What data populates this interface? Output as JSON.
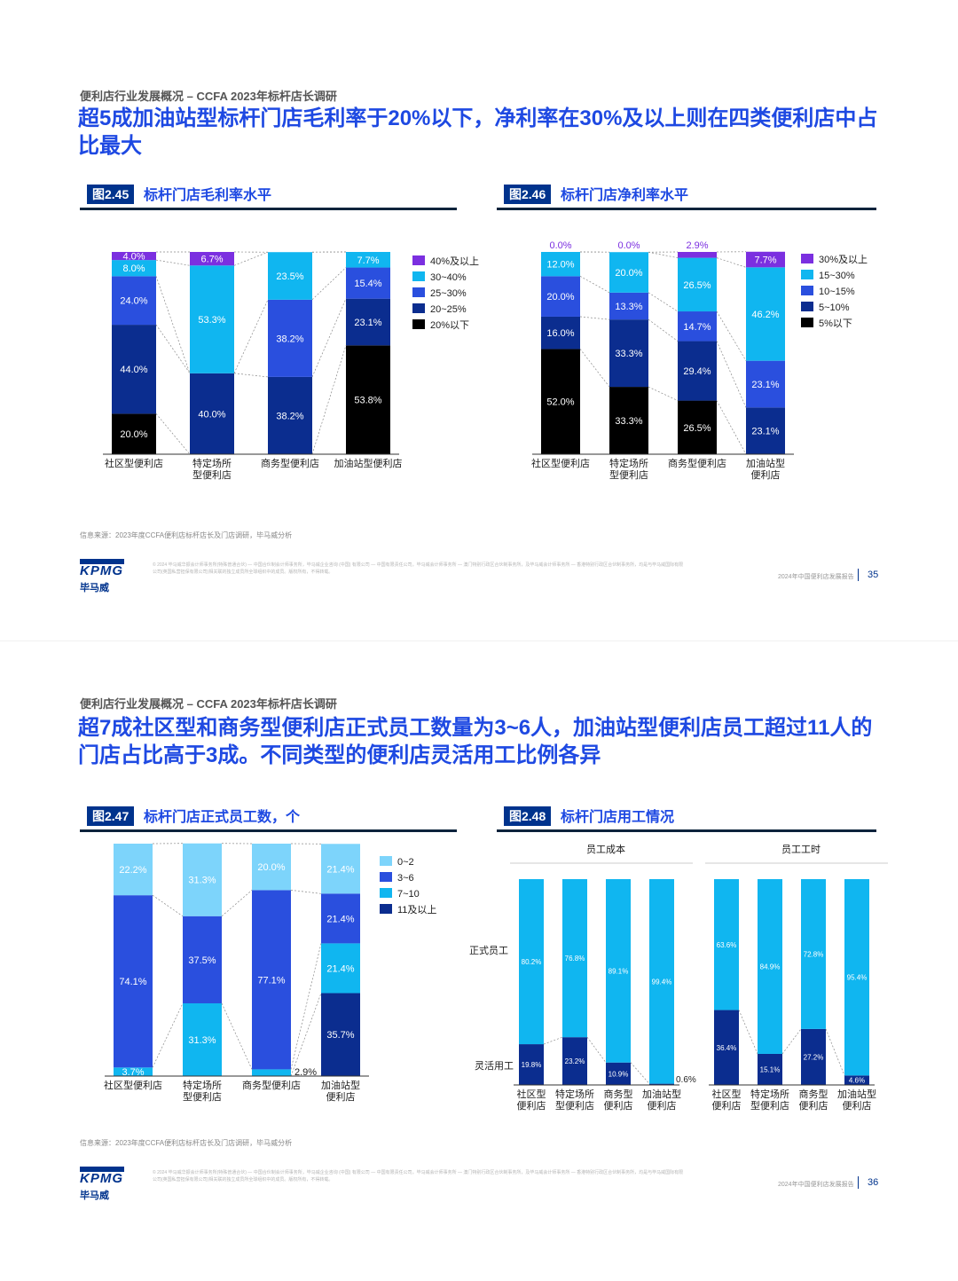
{
  "pages": [
    {
      "section": "便利店行业发展概况 – CCFA 2023年标杆店长调研",
      "headline": "超5成加油站型标杆门店毛利率于20%以下，净利率在30%及以上则在四类便利店中占比最大",
      "source": "信息来源：2023年度CCFA便利店标杆店长及门店调研，毕马威分析",
      "disclaimer": "© 2024 毕马威华振会计师事务所(特殊普通合伙) — 中国合伙制会计师事务所，毕马威企业咨询 (中国) 有限公司 — 中国有限责任公司，毕马威会计师事务所 — 澳门特别行政区合伙制事务所，及毕马威会计师事务所 — 香港特别行政区合伙制事务所，均是与毕马威国际有限公司(英国私营担保有限公司)相关联的独立成员所全球组织中的成员。版权所有，不得转载。",
      "report_name": "2024年中国便利店发展报告",
      "page_number": "35"
    },
    {
      "section": "便利店行业发展概况 – CCFA 2023年标杆店长调研",
      "headline": "超7成社区型和商务型便利店正式员工数量为3~6人，加油站型便利店员工超过11人的门店占比高于3成。不同类型的便利店灵活用工比例各异",
      "source": "信息来源：2023年度CCFA便利店标杆店长及门店调研，毕马威分析",
      "disclaimer": "© 2024 毕马威华振会计师事务所(特殊普通合伙) — 中国合伙制会计师事务所，毕马威企业咨询 (中国) 有限公司 — 中国有限责任公司，毕马威会计师事务所 — 澳门特别行政区合伙制事务所，及毕马威会计师事务所 — 香港特别行政区合伙制事务所，均是与毕马威国际有限公司(英国私营担保有限公司)相关联的独立成员所全球组织中的成员。版权所有，不得转载。",
      "report_name": "2024年中国便利店发展报告",
      "page_number": "36"
    }
  ],
  "logo": {
    "mark": "KPMG",
    "cn": "毕马威"
  },
  "colors": {
    "purple": "#7b2fe0",
    "cyan": "#10b6f0",
    "light_cyan": "#7dd4fb",
    "blue": "#2a4fde",
    "navy": "#0b2d8f",
    "black": "#000000",
    "brand_blue": "#1e49e2",
    "dark_navy": "#00338d"
  },
  "chart_data": [
    {
      "id": "fig245",
      "type": "bar",
      "stacked": true,
      "figure_number": "图2.45",
      "title": "标杆门店毛利率水平",
      "categories": [
        "社区型便利店",
        "特定场所\n型便利店",
        "商务型便利店",
        "加油站型便利店"
      ],
      "series": [
        {
          "name": "20%以下",
          "color": "#000000",
          "values": [
            20.0,
            0,
            0,
            53.8
          ],
          "labels": [
            "20.0%",
            "",
            "",
            "53.8%"
          ]
        },
        {
          "name": "20~25%",
          "color": "#0b2d8f",
          "values": [
            44.0,
            40.0,
            38.2,
            23.1
          ],
          "labels": [
            "44.0%",
            "40.0%",
            "38.2%",
            "23.1%"
          ]
        },
        {
          "name": "25~30%",
          "color": "#2a4fde",
          "values": [
            24.0,
            0,
            38.2,
            15.4
          ],
          "labels": [
            "24.0%",
            "",
            "38.2%",
            "15.4%"
          ]
        },
        {
          "name": "30~40%",
          "color": "#10b6f0",
          "values": [
            8.0,
            53.3,
            23.5,
            7.7
          ],
          "labels": [
            "8.0%",
            "53.3%",
            "23.5%",
            "7.7%"
          ]
        },
        {
          "name": "40%及以上",
          "color": "#7b2fe0",
          "values": [
            4.0,
            6.7,
            0,
            0
          ],
          "labels": [
            "4.0%",
            "6.7%",
            "",
            ""
          ]
        }
      ],
      "legend_order": [
        "40%及以上",
        "30~40%",
        "25~30%",
        "20~25%",
        "20%以下"
      ],
      "legend": "right",
      "ylim": [
        0,
        100
      ]
    },
    {
      "id": "fig246",
      "type": "bar",
      "stacked": true,
      "figure_number": "图2.46",
      "title": "标杆门店净利率水平",
      "categories": [
        "社区型便利店",
        "特定场所\n型便利店",
        "商务型便利店",
        "加油站型\n便利店"
      ],
      "series": [
        {
          "name": "5%以下",
          "color": "#000000",
          "values": [
            52.0,
            33.3,
            26.5,
            0
          ],
          "labels": [
            "52.0%",
            "33.3%",
            "26.5%",
            ""
          ]
        },
        {
          "name": "5~10%",
          "color": "#0b2d8f",
          "values": [
            16.0,
            33.3,
            29.4,
            23.1
          ],
          "labels": [
            "16.0%",
            "33.3%",
            "29.4%",
            "23.1%"
          ]
        },
        {
          "name": "10~15%",
          "color": "#2a4fde",
          "values": [
            20.0,
            13.3,
            14.7,
            23.1
          ],
          "labels": [
            "20.0%",
            "13.3%",
            "14.7%",
            "23.1%"
          ]
        },
        {
          "name": "15~30%",
          "color": "#10b6f0",
          "values": [
            12.0,
            20.0,
            26.5,
            46.2
          ],
          "labels": [
            "12.0%",
            "20.0%",
            "26.5%",
            "46.2%"
          ]
        },
        {
          "name": "30%及以上",
          "color": "#7b2fe0",
          "values": [
            0.0,
            0.0,
            2.9,
            7.7
          ],
          "labels": [
            "0.0%",
            "0.0%",
            "2.9%",
            "7.7%"
          ]
        }
      ],
      "legend_order": [
        "30%及以上",
        "15~30%",
        "10~15%",
        "5~10%",
        "5%以下"
      ],
      "legend": "right",
      "ylim": [
        0,
        100
      ]
    },
    {
      "id": "fig247",
      "type": "bar",
      "stacked": true,
      "figure_number": "图2.47",
      "title": "标杆门店正式员工数，个",
      "categories": [
        "社区型便利店",
        "特定场所\n型便利店",
        "商务型便利店",
        "加油站型\n便利店"
      ],
      "series": [
        {
          "name": "11及以上",
          "color": "#0b2d8f",
          "values": [
            0,
            0,
            0,
            35.7
          ],
          "labels": [
            "",
            "",
            "",
            "35.7%"
          ]
        },
        {
          "name": "7~10",
          "color": "#10b6f0",
          "values": [
            3.7,
            31.3,
            2.9,
            21.4
          ],
          "labels": [
            "3.7%",
            "31.3%",
            "2.9%",
            "21.4%"
          ]
        },
        {
          "name": "3~6",
          "color": "#2a4fde",
          "values": [
            74.1,
            37.5,
            77.1,
            21.4
          ],
          "labels": [
            "74.1%",
            "37.5%",
            "77.1%",
            "21.4%"
          ]
        },
        {
          "name": "0~2",
          "color": "#7dd4fb",
          "values": [
            22.2,
            31.3,
            20.0,
            21.4
          ],
          "labels": [
            "22.2%",
            "31.3%",
            "20.0%",
            "21.4%"
          ]
        }
      ],
      "legend_order": [
        "0~2",
        "3~6",
        "7~10",
        "11及以上"
      ],
      "legend": "right",
      "ylim": [
        0,
        100
      ]
    },
    {
      "id": "fig248",
      "type": "bar",
      "stacked": true,
      "figure_number": "图2.48",
      "title": "标杆门店用工情况",
      "row_labels": [
        "正式员工",
        "灵活用工"
      ],
      "panels": [
        {
          "title": "员工成本",
          "categories": [
            "社区型\n便利店",
            "特定场所\n型便利店",
            "商务型\n便利店",
            "加油站型\n便利店"
          ],
          "series": [
            {
              "name": "灵活用工",
              "color": "#0b2d8f",
              "values": [
                19.8,
                23.2,
                10.9,
                0.6
              ],
              "labels": [
                "19.8%",
                "23.2%",
                "10.9%",
                "0.6%"
              ]
            },
            {
              "name": "正式员工",
              "color": "#10b6f0",
              "values": [
                80.2,
                76.8,
                89.1,
                99.4
              ],
              "labels": [
                "80.2%",
                "76.8%",
                "89.1%",
                "99.4%"
              ]
            }
          ]
        },
        {
          "title": "员工工时",
          "categories": [
            "社区型\n便利店",
            "特定场所\n型便利店",
            "商务型\n便利店",
            "加油站型\n便利店"
          ],
          "series": [
            {
              "name": "灵活用工",
              "color": "#0b2d8f",
              "values": [
                36.4,
                15.1,
                27.2,
                4.6
              ],
              "labels": [
                "36.4%",
                "15.1%",
                "27.2%",
                "4.6%"
              ]
            },
            {
              "name": "正式员工",
              "color": "#10b6f0",
              "values": [
                63.6,
                84.9,
                72.8,
                95.4
              ],
              "labels": [
                "63.6%",
                "84.9%",
                "72.8%",
                "95.4%"
              ]
            }
          ]
        }
      ],
      "ylim": [
        0,
        100
      ]
    }
  ]
}
